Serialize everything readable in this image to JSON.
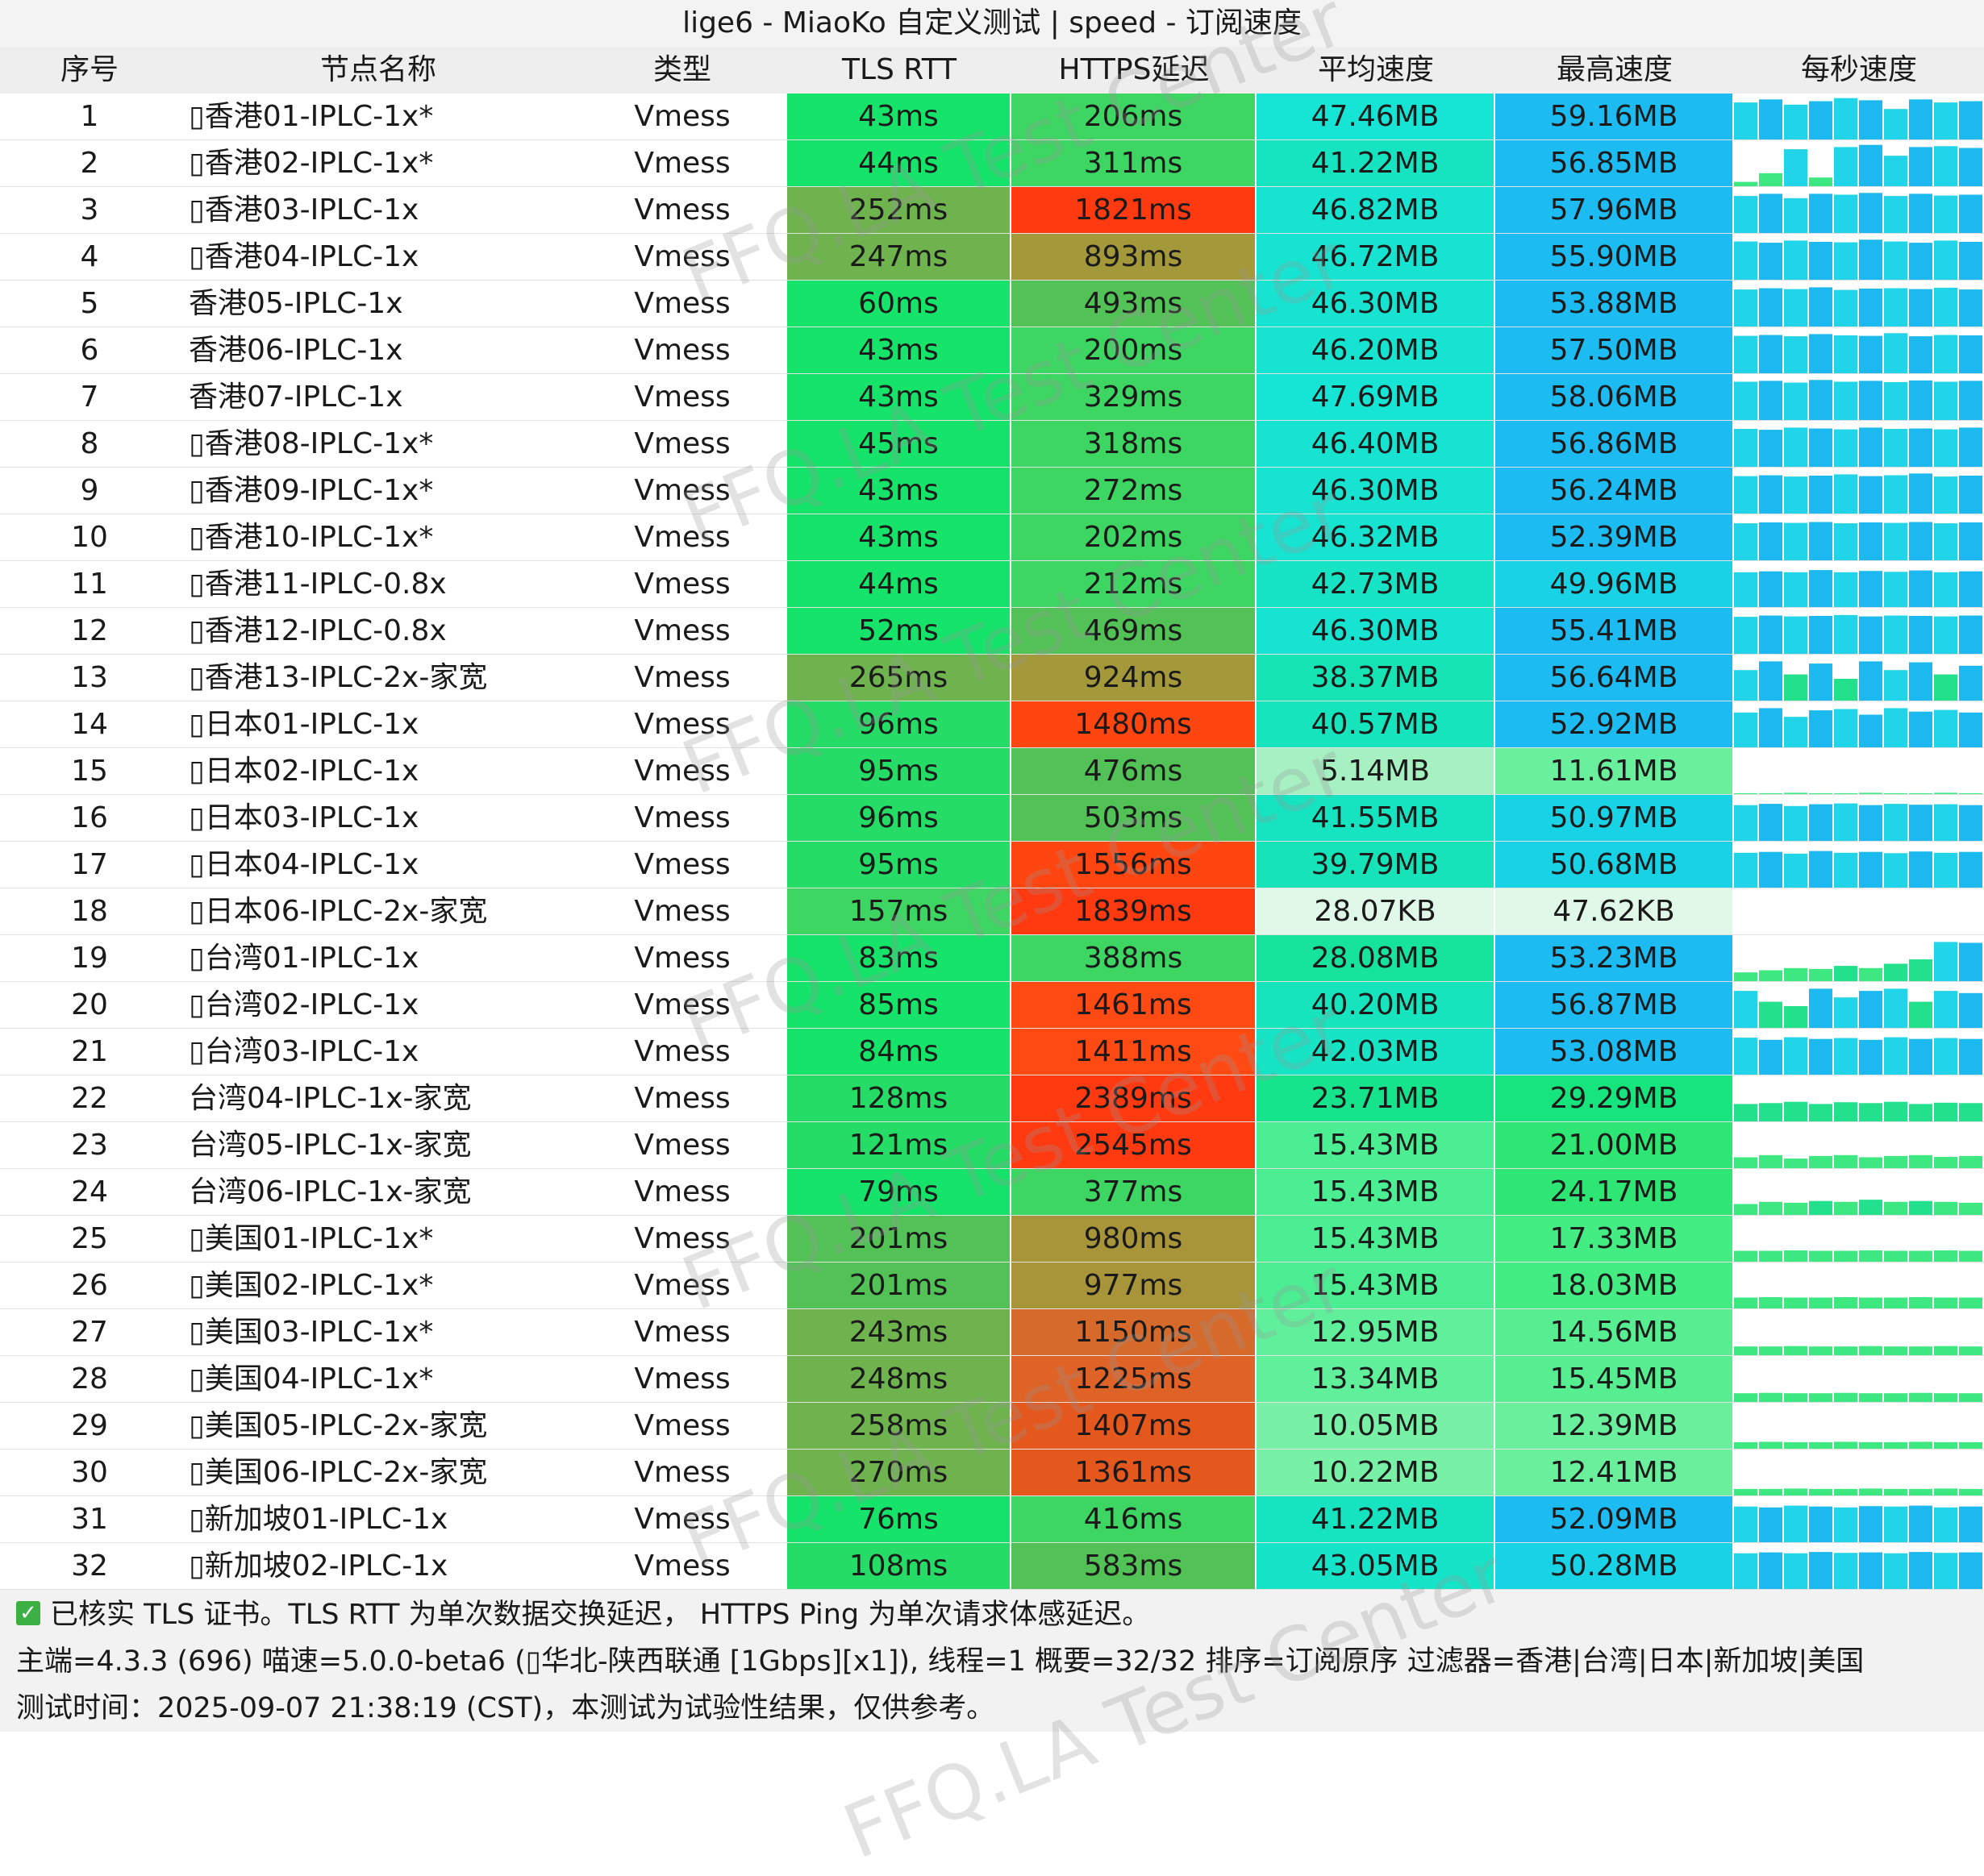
{
  "title": "lige6 - MiaoKo 自定义测试 | speed - 订阅速度",
  "headers": [
    "序号",
    "节点名称",
    "类型",
    "TLS RTT",
    "HTTPS延迟",
    "平均速度",
    "最高速度",
    "每秒速度"
  ],
  "rows": [
    {
      "id": "1",
      "name": "▯香港01-IPLC-1x*",
      "type": "Vmess",
      "tls": "43ms",
      "https": "206ms",
      "avg": "47.46MB",
      "max": "59.16MB",
      "tls_c": "#16e46a",
      "https_c": "#3ed662",
      "avg_c": "#16e4d4",
      "max_c": "#1cbcf2",
      "spark": [
        0.85,
        0.92,
        0.8,
        0.88,
        0.95,
        0.9,
        0.7,
        0.92,
        0.85,
        0.88
      ]
    },
    {
      "id": "2",
      "name": "▯香港02-IPLC-1x*",
      "type": "Vmess",
      "tls": "44ms",
      "https": "311ms",
      "avg": "41.22MB",
      "max": "56.85MB",
      "tls_c": "#16e46a",
      "https_c": "#3ed662",
      "avg_c": "#16e4c0",
      "max_c": "#1cbcf2",
      "spark": [
        0.1,
        0.3,
        0.85,
        0.2,
        0.9,
        0.95,
        0.7,
        0.9,
        0.92,
        0.88
      ]
    },
    {
      "id": "3",
      "name": "▯香港03-IPLC-1x",
      "type": "Vmess",
      "tls": "252ms",
      "https": "1821ms",
      "avg": "46.82MB",
      "max": "57.96MB",
      "tls_c": "#6fb34e",
      "https_c": "#ff3a10",
      "avg_c": "#16e4d0",
      "max_c": "#1cbcf2",
      "spark": [
        0.85,
        0.9,
        0.8,
        0.9,
        0.88,
        0.92,
        0.85,
        0.9,
        0.86,
        0.88
      ]
    },
    {
      "id": "4",
      "name": "▯香港04-IPLC-1x",
      "type": "Vmess",
      "tls": "247ms",
      "https": "893ms",
      "avg": "46.72MB",
      "max": "55.90MB",
      "tls_c": "#6fb34e",
      "https_c": "#a3983a",
      "avg_c": "#16e4d0",
      "max_c": "#1cbcf2",
      "spark": [
        0.88,
        0.85,
        0.9,
        0.87,
        0.86,
        0.92,
        0.88,
        0.85,
        0.9,
        0.87
      ]
    },
    {
      "id": "5",
      "name": "香港05-IPLC-1x",
      "type": "Vmess",
      "tls": "60ms",
      "https": "493ms",
      "avg": "46.30MB",
      "max": "53.88MB",
      "tls_c": "#16e46a",
      "https_c": "#52c256",
      "avg_c": "#16e4d0",
      "max_c": "#1cbcf2",
      "spark": [
        0.85,
        0.88,
        0.86,
        0.9,
        0.84,
        0.87,
        0.88,
        0.86,
        0.89,
        0.85
      ]
    },
    {
      "id": "6",
      "name": "香港06-IPLC-1x",
      "type": "Vmess",
      "tls": "43ms",
      "https": "200ms",
      "avg": "46.20MB",
      "max": "57.50MB",
      "tls_c": "#16e46a",
      "https_c": "#3ed662",
      "avg_c": "#16e4d0",
      "max_c": "#1cbcf2",
      "spark": [
        0.86,
        0.88,
        0.85,
        0.9,
        0.87,
        0.86,
        0.92,
        0.85,
        0.88,
        0.87
      ]
    },
    {
      "id": "7",
      "name": "香港07-IPLC-1x",
      "type": "Vmess",
      "tls": "43ms",
      "https": "329ms",
      "avg": "47.69MB",
      "max": "58.06MB",
      "tls_c": "#16e46a",
      "https_c": "#3ed662",
      "avg_c": "#16e4d4",
      "max_c": "#1cbcf2",
      "spark": [
        0.88,
        0.9,
        0.86,
        0.92,
        0.88,
        0.9,
        0.87,
        0.91,
        0.88,
        0.9
      ]
    },
    {
      "id": "8",
      "name": "▯香港08-IPLC-1x*",
      "type": "Vmess",
      "tls": "45ms",
      "https": "318ms",
      "avg": "46.40MB",
      "max": "56.86MB",
      "tls_c": "#16e46a",
      "https_c": "#3ed662",
      "avg_c": "#16e4d0",
      "max_c": "#1cbcf2",
      "spark": [
        0.87,
        0.85,
        0.9,
        0.88,
        0.86,
        0.9,
        0.87,
        0.88,
        0.86,
        0.9
      ]
    },
    {
      "id": "9",
      "name": "▯香港09-IPLC-1x*",
      "type": "Vmess",
      "tls": "43ms",
      "https": "272ms",
      "avg": "46.30MB",
      "max": "56.24MB",
      "tls_c": "#16e46a",
      "https_c": "#3ed662",
      "avg_c": "#16e4d0",
      "max_c": "#1cbcf2",
      "spark": [
        0.86,
        0.88,
        0.85,
        0.87,
        0.9,
        0.86,
        0.88,
        0.92,
        0.85,
        0.87
      ]
    },
    {
      "id": "10",
      "name": "▯香港10-IPLC-1x*",
      "type": "Vmess",
      "tls": "43ms",
      "https": "202ms",
      "avg": "46.32MB",
      "max": "52.39MB",
      "tls_c": "#16e46a",
      "https_c": "#3ed662",
      "avg_c": "#16e4d0",
      "max_c": "#1cbcf2",
      "spark": [
        0.85,
        0.87,
        0.86,
        0.88,
        0.85,
        0.87,
        0.86,
        0.88,
        0.85,
        0.87
      ]
    },
    {
      "id": "11",
      "name": "▯香港11-IPLC-0.8x",
      "type": "Vmess",
      "tls": "44ms",
      "https": "212ms",
      "avg": "42.73MB",
      "max": "49.96MB",
      "tls_c": "#16e46a",
      "https_c": "#3ed662",
      "avg_c": "#16e4c4",
      "max_c": "#18d2e6",
      "spark": [
        0.8,
        0.82,
        0.8,
        0.85,
        0.8,
        0.83,
        0.81,
        0.84,
        0.8,
        0.82
      ]
    },
    {
      "id": "12",
      "name": "▯香港12-IPLC-0.8x",
      "type": "Vmess",
      "tls": "52ms",
      "https": "469ms",
      "avg": "46.30MB",
      "max": "55.41MB",
      "tls_c": "#16e46a",
      "https_c": "#52c256",
      "avg_c": "#16e4d0",
      "max_c": "#1cbcf2",
      "spark": [
        0.85,
        0.88,
        0.86,
        0.87,
        0.89,
        0.86,
        0.88,
        0.87,
        0.86,
        0.88
      ]
    },
    {
      "id": "13",
      "name": "▯香港13-IPLC-2x-家宽",
      "type": "Vmess",
      "tls": "265ms",
      "https": "924ms",
      "avg": "38.37MB",
      "max": "56.64MB",
      "tls_c": "#6fb34e",
      "https_c": "#a3983a",
      "avg_c": "#16e4b4",
      "max_c": "#1cbcf2",
      "spark": [
        0.7,
        0.9,
        0.6,
        0.85,
        0.5,
        0.9,
        0.7,
        0.88,
        0.6,
        0.8
      ]
    },
    {
      "id": "14",
      "name": "▯日本01-IPLC-1x",
      "type": "Vmess",
      "tls": "96ms",
      "https": "1480ms",
      "avg": "40.57MB",
      "max": "52.92MB",
      "tls_c": "#24dc66",
      "https_c": "#ff4510",
      "avg_c": "#16e4bc",
      "max_c": "#1cbcf2",
      "spark": [
        0.8,
        0.9,
        0.7,
        0.85,
        0.88,
        0.75,
        0.9,
        0.82,
        0.86,
        0.8
      ]
    },
    {
      "id": "15",
      "name": "▯日本02-IPLC-1x",
      "type": "Vmess",
      "tls": "95ms",
      "https": "476ms",
      "avg": "5.14MB",
      "max": "11.61MB",
      "tls_c": "#24dc66",
      "https_c": "#52c256",
      "avg_c": "#a6f0c2",
      "max_c": "#6af09c",
      "spark": [
        0.02,
        0.02,
        0.03,
        0.02,
        0.02,
        0.03,
        0.02,
        0.02,
        0.03,
        0.02
      ]
    },
    {
      "id": "16",
      "name": "▯日本03-IPLC-1x",
      "type": "Vmess",
      "tls": "96ms",
      "https": "503ms",
      "avg": "41.55MB",
      "max": "50.97MB",
      "tls_c": "#24dc66",
      "https_c": "#52c256",
      "avg_c": "#16e4c0",
      "max_c": "#18d2e6",
      "spark": [
        0.82,
        0.85,
        0.8,
        0.84,
        0.86,
        0.82,
        0.85,
        0.83,
        0.84,
        0.82
      ]
    },
    {
      "id": "17",
      "name": "▯日本04-IPLC-1x",
      "type": "Vmess",
      "tls": "95ms",
      "https": "1556ms",
      "avg": "39.79MB",
      "max": "50.68MB",
      "tls_c": "#24dc66",
      "https_c": "#ff4510",
      "avg_c": "#16e4b8",
      "max_c": "#18d2e6",
      "spark": [
        0.8,
        0.82,
        0.78,
        0.84,
        0.8,
        0.82,
        0.79,
        0.83,
        0.8,
        0.82
      ]
    },
    {
      "id": "18",
      "name": "▯日本06-IPLC-2x-家宽",
      "type": "Vmess",
      "tls": "157ms",
      "https": "1839ms",
      "avg": "28.07KB",
      "max": "47.62KB",
      "tls_c": "#3ed662",
      "https_c": "#ff3a10",
      "avg_c": "#e0f8e8",
      "max_c": "#e0f8e8",
      "spark": [
        0,
        0,
        0,
        0,
        0,
        0,
        0,
        0,
        0,
        0
      ]
    },
    {
      "id": "19",
      "name": "▯台湾01-IPLC-1x",
      "type": "Vmess",
      "tls": "83ms",
      "https": "388ms",
      "avg": "28.08MB",
      "max": "53.23MB",
      "tls_c": "#16e46a",
      "https_c": "#3ed662",
      "avg_c": "#16e49c",
      "max_c": "#1cbcf2",
      "spark": [
        0.2,
        0.25,
        0.3,
        0.28,
        0.35,
        0.3,
        0.4,
        0.5,
        0.9,
        0.88
      ]
    },
    {
      "id": "20",
      "name": "▯台湾02-IPLC-1x",
      "type": "Vmess",
      "tls": "85ms",
      "https": "1461ms",
      "avg": "40.20MB",
      "max": "56.87MB",
      "tls_c": "#16e46a",
      "https_c": "#ff4a14",
      "avg_c": "#16e4bc",
      "max_c": "#1cbcf2",
      "spark": [
        0.85,
        0.6,
        0.5,
        0.9,
        0.7,
        0.85,
        0.9,
        0.6,
        0.85,
        0.8
      ]
    },
    {
      "id": "21",
      "name": "▯台湾03-IPLC-1x",
      "type": "Vmess",
      "tls": "84ms",
      "https": "1411ms",
      "avg": "42.03MB",
      "max": "53.08MB",
      "tls_c": "#16e46a",
      "https_c": "#ff4a14",
      "avg_c": "#16e4c4",
      "max_c": "#1cbcf2",
      "spark": [
        0.85,
        0.8,
        0.86,
        0.82,
        0.84,
        0.8,
        0.86,
        0.82,
        0.84,
        0.82
      ]
    },
    {
      "id": "22",
      "name": "台湾04-IPLC-1x-家宽",
      "type": "Vmess",
      "tls": "128ms",
      "https": "2389ms",
      "avg": "23.71MB",
      "max": "29.29MB",
      "tls_c": "#24dc66",
      "https_c": "#ff3a10",
      "avg_c": "#16e48c",
      "max_c": "#16e47c",
      "spark": [
        0.4,
        0.42,
        0.45,
        0.4,
        0.44,
        0.42,
        0.45,
        0.4,
        0.43,
        0.42
      ]
    },
    {
      "id": "23",
      "name": "台湾05-IPLC-1x-家宽",
      "type": "Vmess",
      "tls": "121ms",
      "https": "2545ms",
      "avg": "15.43MB",
      "max": "21.00MB",
      "tls_c": "#24dc66",
      "https_c": "#ff3a10",
      "avg_c": "#4cee94",
      "max_c": "#2ee674",
      "spark": [
        0.25,
        0.3,
        0.22,
        0.28,
        0.3,
        0.25,
        0.28,
        0.3,
        0.26,
        0.28
      ]
    },
    {
      "id": "24",
      "name": "台湾06-IPLC-1x-家宽",
      "type": "Vmess",
      "tls": "79ms",
      "https": "377ms",
      "avg": "15.43MB",
      "max": "24.17MB",
      "tls_c": "#16e46a",
      "https_c": "#3ed662",
      "avg_c": "#4cee94",
      "max_c": "#2ee674",
      "spark": [
        0.25,
        0.3,
        0.28,
        0.32,
        0.3,
        0.35,
        0.3,
        0.32,
        0.3,
        0.28
      ]
    },
    {
      "id": "25",
      "name": "▯美国01-IPLC-1x*",
      "type": "Vmess",
      "tls": "201ms",
      "https": "980ms",
      "avg": "15.43MB",
      "max": "17.33MB",
      "tls_c": "#52c256",
      "https_c": "#a8953a",
      "avg_c": "#4cee94",
      "max_c": "#44ec84",
      "spark": [
        0.25,
        0.25,
        0.26,
        0.25,
        0.25,
        0.26,
        0.25,
        0.25,
        0.26,
        0.25
      ]
    },
    {
      "id": "26",
      "name": "▯美国02-IPLC-1x*",
      "type": "Vmess",
      "tls": "201ms",
      "https": "977ms",
      "avg": "15.43MB",
      "max": "18.03MB",
      "tls_c": "#52c256",
      "https_c": "#a8953a",
      "avg_c": "#4cee94",
      "max_c": "#44ec84",
      "spark": [
        0.25,
        0.26,
        0.25,
        0.25,
        0.26,
        0.25,
        0.25,
        0.26,
        0.25,
        0.25
      ]
    },
    {
      "id": "27",
      "name": "▯美国03-IPLC-1x*",
      "type": "Vmess",
      "tls": "243ms",
      "https": "1150ms",
      "avg": "12.95MB",
      "max": "14.56MB",
      "tls_c": "#6fb34e",
      "https_c": "#d66a2a",
      "avg_c": "#60f09c",
      "max_c": "#56ee90",
      "spark": [
        0.2,
        0.2,
        0.21,
        0.2,
        0.2,
        0.21,
        0.2,
        0.2,
        0.21,
        0.2
      ]
    },
    {
      "id": "28",
      "name": "▯美国04-IPLC-1x*",
      "type": "Vmess",
      "tls": "248ms",
      "https": "1225ms",
      "avg": "13.34MB",
      "max": "15.45MB",
      "tls_c": "#6fb34e",
      "https_c": "#df6226",
      "avg_c": "#60f09c",
      "max_c": "#56ee90",
      "spark": [
        0.2,
        0.21,
        0.2,
        0.2,
        0.21,
        0.2,
        0.2,
        0.21,
        0.2,
        0.2
      ]
    },
    {
      "id": "29",
      "name": "▯美国05-IPLC-2x-家宽",
      "type": "Vmess",
      "tls": "258ms",
      "https": "1407ms",
      "avg": "10.05MB",
      "max": "12.39MB",
      "tls_c": "#6fb34e",
      "https_c": "#e4581e",
      "avg_c": "#78f0a6",
      "max_c": "#6af09c",
      "spark": [
        0.15,
        0.16,
        0.15,
        0.15,
        0.16,
        0.15,
        0.15,
        0.16,
        0.15,
        0.15
      ]
    },
    {
      "id": "30",
      "name": "▯美国06-IPLC-2x-家宽",
      "type": "Vmess",
      "tls": "270ms",
      "https": "1361ms",
      "avg": "10.22MB",
      "max": "12.41MB",
      "tls_c": "#6fb34e",
      "https_c": "#e4581e",
      "avg_c": "#78f0a6",
      "max_c": "#6af09c",
      "spark": [
        0.15,
        0.15,
        0.16,
        0.15,
        0.15,
        0.16,
        0.15,
        0.15,
        0.16,
        0.15
      ]
    },
    {
      "id": "31",
      "name": "▯新加坡01-IPLC-1x",
      "type": "Vmess",
      "tls": "76ms",
      "https": "416ms",
      "avg": "41.22MB",
      "max": "52.09MB",
      "tls_c": "#16e46a",
      "https_c": "#3ed662",
      "avg_c": "#16e4c0",
      "max_c": "#1cbcf2",
      "spark": [
        0.82,
        0.8,
        0.84,
        0.82,
        0.8,
        0.83,
        0.82,
        0.84,
        0.8,
        0.82
      ]
    },
    {
      "id": "32",
      "name": "▯新加坡02-IPLC-1x",
      "type": "Vmess",
      "tls": "108ms",
      "https": "583ms",
      "avg": "43.05MB",
      "max": "50.28MB",
      "tls_c": "#24dc66",
      "https_c": "#52c256",
      "avg_c": "#16e4c8",
      "max_c": "#18d2e6",
      "spark": [
        0.82,
        0.84,
        0.82,
        0.85,
        0.83,
        0.84,
        0.82,
        0.85,
        0.83,
        0.84
      ]
    }
  ],
  "footer": {
    "line1": "已核实 TLS 证书。TLS RTT 为单次数据交换延迟， HTTPS Ping 为单次请求体感延迟。",
    "line2": "主端=4.3.3 (696) 喵速=5.0.0-beta6 (▯华北-陕西联通 [1Gbps][x1]), 线程=1 概要=32/32 排序=订阅原序 过滤器=香港|台湾|日本|新加坡|美国",
    "line3": "测试时间：2025-09-07 21:38:19 (CST)，本测试为试验性结果，仅供参考。",
    "check_icon": "check-icon"
  },
  "watermark": "FFQ.LA Test Center"
}
